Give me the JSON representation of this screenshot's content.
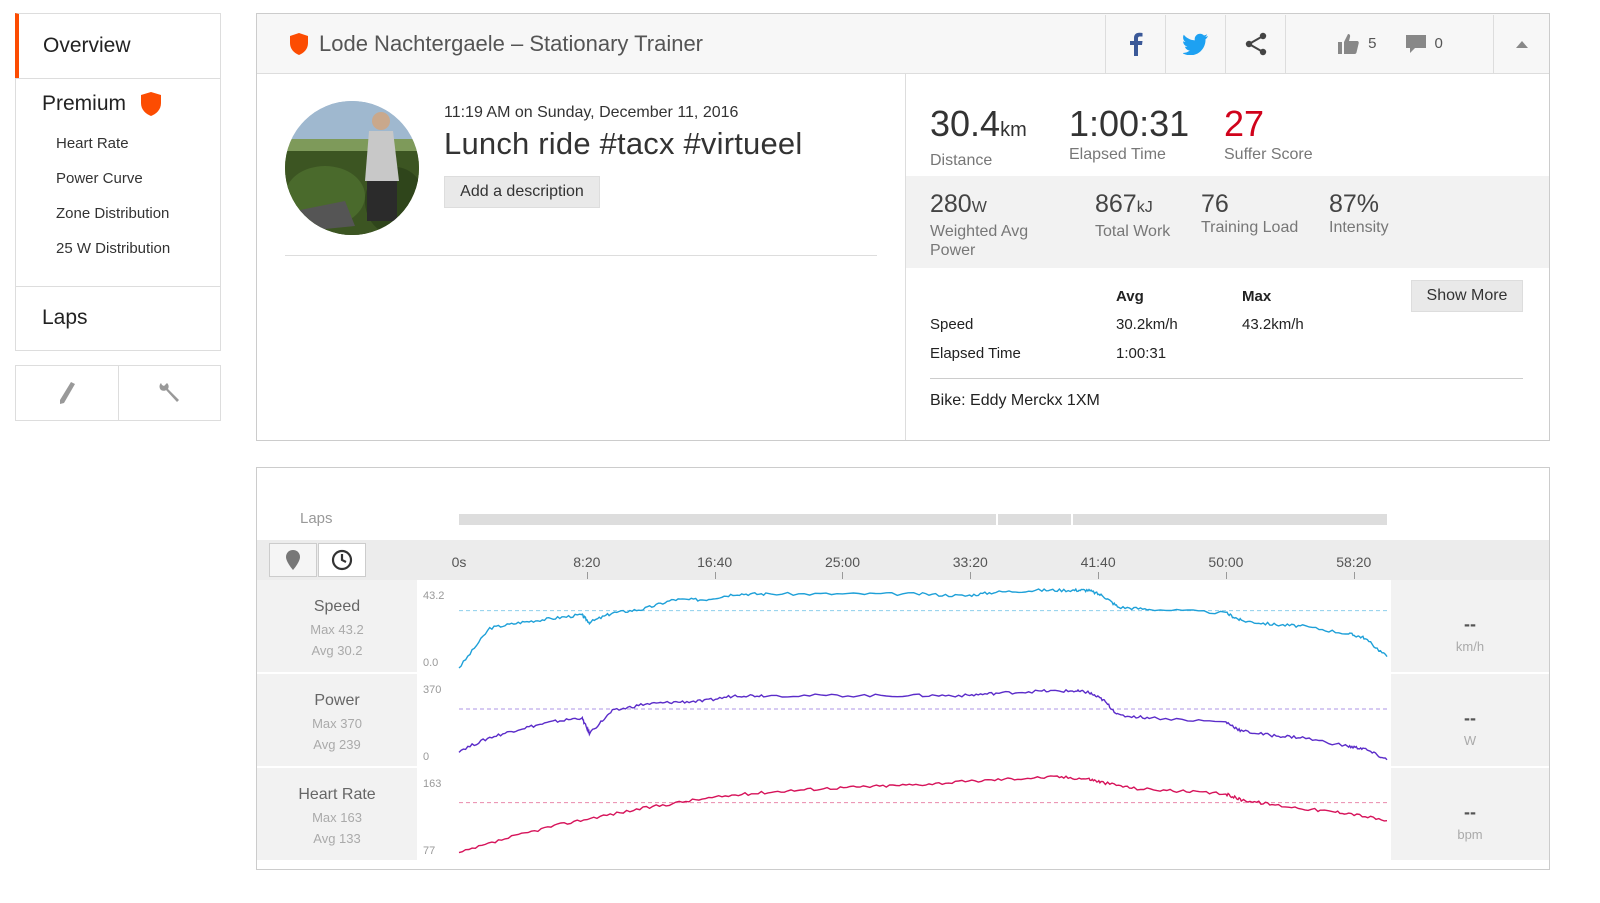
{
  "sidebar": {
    "overview": "Overview",
    "premium": "Premium",
    "premium_items": [
      "Heart Rate",
      "Power Curve",
      "Zone Distribution",
      "25 W Distribution"
    ],
    "laps": "Laps",
    "tools": [
      "pencil-icon",
      "wrench-icon"
    ]
  },
  "header": {
    "title": "Lode Nachtergaele – Stationary Trainer",
    "kudos_count": "5",
    "comment_count": "0"
  },
  "activity": {
    "datetime": "11:19 AM on Sunday, December 11, 2016",
    "name": "Lunch ride #tacx #virtueel",
    "add_description": "Add a description"
  },
  "stats": {
    "distance": {
      "value": "30.4",
      "unit": "km",
      "label": "Distance"
    },
    "elapsed": {
      "value": "1:00:31",
      "label": "Elapsed Time"
    },
    "suffer": {
      "value": "27",
      "label": "Suffer Score"
    },
    "wap": {
      "value": "280",
      "unit": "W",
      "label1": "Weighted Avg",
      "label2": "Power"
    },
    "work": {
      "value": "867",
      "unit": "kJ",
      "label": "Total Work"
    },
    "load": {
      "value": "76",
      "label": "Training Load"
    },
    "intensity": {
      "value": "87%",
      "label": "Intensity"
    }
  },
  "table": {
    "col_avg": "Avg",
    "col_max": "Max",
    "rows": [
      {
        "label": "Speed",
        "avg": "30.2km/h",
        "max": "43.2km/h"
      },
      {
        "label": "Elapsed Time",
        "avg": "1:00:31",
        "max": ""
      }
    ],
    "show_more": "Show More",
    "bike": "Bike: Eddy Merckx 1XM"
  },
  "colors": {
    "accent": "#fc4c02",
    "suffer": "#d0021b",
    "speed": "#1ea0d8",
    "power": "#5b2cc9",
    "heart": "#d6135a"
  },
  "chart": {
    "laps_label": "Laps",
    "ticks": [
      "0s",
      "8:20",
      "16:40",
      "25:00",
      "33:20",
      "41:40",
      "50:00",
      "58:20"
    ],
    "streams": [
      {
        "name": "Speed",
        "max_label": "Max 43.2",
        "avg_label": "Avg 30.2",
        "ymax": "43.2",
        "ymin": "0.0",
        "current": "--",
        "unit": "km/h"
      },
      {
        "name": "Power",
        "max_label": "Max 370",
        "avg_label": "Avg 239",
        "ymax": "370",
        "ymin": "0",
        "current": "--",
        "unit": "W"
      },
      {
        "name": "Heart Rate",
        "max_label": "Max 163",
        "avg_label": "Avg 133",
        "ymax": "163",
        "ymin": "77",
        "current": "--",
        "unit": "bpm"
      }
    ]
  },
  "chart_data": [
    {
      "type": "line",
      "title": "",
      "x": [
        0,
        2,
        4,
        6,
        8,
        8.5,
        10,
        12,
        14,
        16,
        18,
        20,
        25,
        30,
        33,
        35,
        38,
        40,
        41,
        42,
        43,
        45,
        50,
        51,
        53,
        55,
        58,
        59,
        60.5
      ],
      "series": [
        {
          "name": "Speed",
          "values": [
            0,
            21,
            24,
            26,
            28,
            24,
            29,
            31,
            36,
            36,
            39,
            39,
            39,
            39,
            38,
            40,
            41,
            41,
            41,
            38,
            32,
            31,
            29,
            25,
            23,
            22,
            18,
            16,
            6
          ]
        }
      ],
      "xlabel": "",
      "ylabel": "",
      "ylim": [
        0,
        43.2
      ]
    },
    {
      "type": "line",
      "title": "",
      "x": [
        0,
        2,
        4,
        6,
        8,
        8.5,
        10,
        12,
        14,
        16,
        18,
        20,
        25,
        30,
        33,
        35,
        38,
        40,
        41,
        42,
        43,
        45,
        50,
        51,
        53,
        55,
        58,
        59,
        60.5
      ],
      "series": [
        {
          "name": "Power",
          "values": [
            50,
            110,
            150,
            180,
            200,
            130,
            230,
            260,
            270,
            275,
            300,
            300,
            300,
            300,
            300,
            310,
            320,
            320,
            315,
            280,
            210,
            200,
            180,
            140,
            120,
            110,
            70,
            60,
            10
          ]
        }
      ],
      "xlabel": "",
      "ylabel": "",
      "ylim": [
        0,
        370
      ]
    },
    {
      "type": "line",
      "title": "",
      "x": [
        0,
        3,
        6,
        9,
        12,
        15,
        18,
        21,
        24,
        27,
        30,
        33,
        36,
        39,
        41,
        42,
        44,
        47,
        50,
        51,
        53,
        56,
        58,
        60.5
      ],
      "series": [
        {
          "name": "Heart Rate",
          "values": [
            80,
            95,
            108,
            118,
            127,
            135,
            141,
            145,
            148,
            150,
            152,
            155,
            158,
            160,
            158,
            154,
            148,
            145,
            142,
            136,
            131,
            125,
            122,
            114
          ]
        }
      ],
      "xlabel": "",
      "ylabel": "",
      "ylim": [
        77,
        163
      ]
    }
  ]
}
